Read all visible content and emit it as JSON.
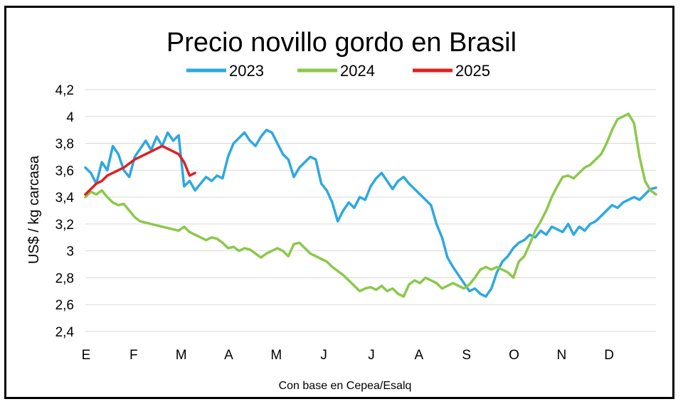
{
  "chart_data": {
    "type": "line",
    "title": "Precio novillo gordo en Brasil",
    "ylabel": "US$ / kg carcasa",
    "xlabel": "",
    "note": "Con base en Cepea/Esalq",
    "ylim": [
      2.4,
      4.2
    ],
    "yticks": [
      "2,4",
      "2,6",
      "2,8",
      "3",
      "3,2",
      "3,4",
      "3,6",
      "3,8",
      "4",
      "4,2"
    ],
    "ytick_values": [
      2.4,
      2.6,
      2.8,
      3.0,
      3.2,
      3.4,
      3.6,
      3.8,
      4.0,
      4.2
    ],
    "months": [
      "E",
      "F",
      "M",
      "A",
      "M",
      "J",
      "J",
      "A",
      "S",
      "O",
      "N",
      "D"
    ],
    "xlim": [
      0,
      52
    ],
    "grid": true,
    "legend_position": "top",
    "series": [
      {
        "name": "2023",
        "color": "#2EA8E0",
        "x": [
          0,
          0.5,
          1,
          1.5,
          2,
          2.5,
          3,
          3.5,
          4,
          4.5,
          5,
          5.5,
          6,
          6.5,
          7,
          7.5,
          8,
          8.5,
          9,
          9.5,
          10,
          10.5,
          11,
          11.5,
          12,
          12.5,
          13,
          13.5,
          14,
          14.5,
          15,
          15.5,
          16,
          16.5,
          17,
          17.5,
          18,
          18.5,
          19,
          19.5,
          20,
          20.5,
          21,
          21.5,
          22,
          22.5,
          23,
          23.5,
          24,
          24.5,
          25,
          25.5,
          26,
          26.5,
          27,
          27.5,
          28,
          28.5,
          29,
          29.5,
          30,
          30.5,
          31,
          31.5,
          32,
          32.5,
          33,
          33.5,
          34,
          34.5,
          35,
          35.5,
          36,
          36.5,
          37,
          37.5,
          38,
          38.5,
          39,
          39.5,
          40,
          40.5,
          41,
          41.5,
          42,
          42.5,
          43,
          43.5,
          44,
          44.5,
          45,
          45.5,
          46,
          46.5,
          47,
          47.5,
          48,
          48.5,
          49,
          49.5,
          50,
          50.5,
          51,
          51.5,
          52
        ],
        "values": [
          3.62,
          3.58,
          3.5,
          3.66,
          3.6,
          3.78,
          3.72,
          3.6,
          3.55,
          3.7,
          3.76,
          3.82,
          3.75,
          3.85,
          3.78,
          3.88,
          3.82,
          3.86,
          3.48,
          3.52,
          3.45,
          3.5,
          3.55,
          3.52,
          3.56,
          3.54,
          3.7,
          3.8,
          3.84,
          3.88,
          3.82,
          3.78,
          3.85,
          3.9,
          3.88,
          3.8,
          3.72,
          3.68,
          3.55,
          3.62,
          3.66,
          3.7,
          3.68,
          3.5,
          3.45,
          3.36,
          3.22,
          3.3,
          3.36,
          3.32,
          3.4,
          3.38,
          3.48,
          3.54,
          3.58,
          3.52,
          3.46,
          3.52,
          3.55,
          3.5,
          3.46,
          3.42,
          3.38,
          3.34,
          3.2,
          3.1,
          2.95,
          2.88,
          2.82,
          2.76,
          2.7,
          2.72,
          2.68,
          2.66,
          2.72,
          2.84,
          2.92,
          2.96,
          3.02,
          3.06,
          3.08,
          3.12,
          3.1,
          3.15,
          3.12,
          3.18,
          3.16,
          3.14,
          3.2,
          3.12,
          3.18,
          3.15,
          3.2,
          3.22,
          3.26,
          3.3,
          3.34,
          3.32,
          3.36,
          3.38,
          3.4,
          3.38,
          3.42,
          3.46,
          3.47
        ]
      },
      {
        "name": "2024",
        "color": "#8CC84B",
        "x": [
          0,
          0.5,
          1,
          1.5,
          2,
          2.5,
          3,
          3.5,
          4,
          4.5,
          5,
          5.5,
          6,
          6.5,
          7,
          7.5,
          8,
          8.5,
          9,
          9.5,
          10,
          10.5,
          11,
          11.5,
          12,
          12.5,
          13,
          13.5,
          14,
          14.5,
          15,
          15.5,
          16,
          16.5,
          17,
          17.5,
          18,
          18.5,
          19,
          19.5,
          20,
          20.5,
          21,
          21.5,
          22,
          22.5,
          23,
          23.5,
          24,
          24.5,
          25,
          25.5,
          26,
          26.5,
          27,
          27.5,
          28,
          28.5,
          29,
          29.5,
          30,
          30.5,
          31,
          31.5,
          32,
          32.5,
          33,
          33.5,
          34,
          34.5,
          35,
          35.5,
          36,
          36.5,
          37,
          37.5,
          38,
          38.5,
          39,
          39.5,
          40,
          40.5,
          41,
          41.5,
          42,
          42.5,
          43,
          43.5,
          44,
          44.5,
          45,
          45.5,
          46,
          46.5,
          47,
          47.5,
          48,
          48.5,
          49,
          49.5,
          50,
          50.5,
          51,
          51.5,
          52
        ],
        "values": [
          3.4,
          3.44,
          3.42,
          3.45,
          3.4,
          3.36,
          3.34,
          3.35,
          3.3,
          3.25,
          3.22,
          3.21,
          3.2,
          3.19,
          3.18,
          3.17,
          3.16,
          3.15,
          3.18,
          3.14,
          3.12,
          3.1,
          3.08,
          3.1,
          3.09,
          3.06,
          3.02,
          3.03,
          3.0,
          3.02,
          3.01,
          2.98,
          2.95,
          2.98,
          3.0,
          3.02,
          3.0,
          2.96,
          3.05,
          3.06,
          3.02,
          2.98,
          2.96,
          2.94,
          2.92,
          2.88,
          2.85,
          2.82,
          2.78,
          2.74,
          2.7,
          2.72,
          2.73,
          2.71,
          2.74,
          2.7,
          2.72,
          2.68,
          2.66,
          2.75,
          2.78,
          2.76,
          2.8,
          2.78,
          2.76,
          2.72,
          2.74,
          2.76,
          2.74,
          2.72,
          2.75,
          2.8,
          2.86,
          2.88,
          2.86,
          2.88,
          2.86,
          2.84,
          2.8,
          2.92,
          2.96,
          3.05,
          3.15,
          3.22,
          3.3,
          3.4,
          3.48,
          3.55,
          3.56,
          3.54,
          3.58,
          3.62,
          3.64,
          3.68,
          3.72,
          3.8,
          3.9,
          3.98,
          4.0,
          4.02,
          3.95,
          3.7,
          3.52,
          3.45,
          3.42
        ]
      },
      {
        "name": "2025",
        "color": "#E02020",
        "x": [
          0,
          0.5,
          1,
          1.5,
          2,
          2.5,
          3,
          3.5,
          4,
          4.5,
          5,
          5.5,
          6,
          6.5,
          7,
          7.5,
          8,
          8.5,
          9,
          9.5,
          10
        ],
        "values": [
          3.42,
          3.46,
          3.5,
          3.52,
          3.56,
          3.58,
          3.6,
          3.62,
          3.65,
          3.68,
          3.7,
          3.72,
          3.74,
          3.76,
          3.78,
          3.76,
          3.74,
          3.72,
          3.66,
          3.56,
          3.58
        ]
      }
    ]
  }
}
